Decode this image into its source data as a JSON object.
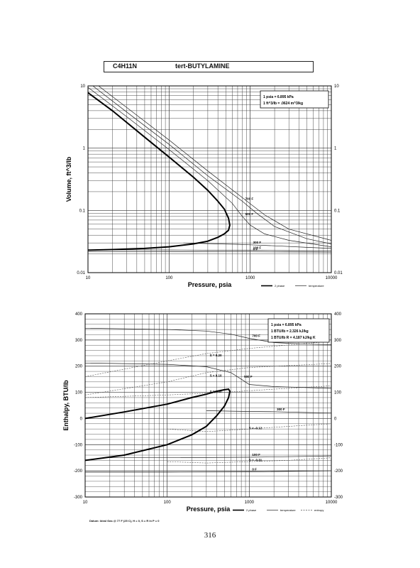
{
  "header": {
    "formula": "C4H11N",
    "name": "tert-BUTYLAMINE"
  },
  "page_number": "316",
  "footnote": "Datum: Ideal Gas @ 77 F (25 C), H = 0, S = R ln P = 0",
  "chart_data": [
    {
      "type": "line",
      "xlabel": "Pressure,  psia",
      "ylabel": "Volume, ft^3/lb",
      "xscale": "log",
      "yscale": "log",
      "xlim": [
        10,
        10000
      ],
      "ylim": [
        0.01,
        10
      ],
      "xticks": [
        "10",
        "100",
        "1000",
        "10000"
      ],
      "yticks_left": [
        "10",
        "1",
        "0.1",
        "0.01"
      ],
      "yticks_right": [
        "10",
        "1",
        "0.1",
        "0.01"
      ],
      "notes": [
        "1 psia = 6.895 kPa",
        "1 ft^3/lb = .0624 m^3/kg"
      ],
      "legend": {
        "placement": "bottom-right",
        "entries": [
          "2 phase",
          "temperature"
        ]
      },
      "dome": {
        "name": "2 phase",
        "x": [
          10,
          20,
          50,
          100,
          200,
          300,
          400,
          480,
          540,
          560,
          540,
          480,
          400,
          300,
          200,
          100,
          50,
          20,
          10
        ],
        "y": [
          7.8,
          4.0,
          1.5,
          0.72,
          0.34,
          0.21,
          0.14,
          0.105,
          0.075,
          0.058,
          0.048,
          0.042,
          0.037,
          0.032,
          0.029,
          0.026,
          0.0245,
          0.0235,
          0.023
        ]
      },
      "series": [
        {
          "name": "0 F",
          "label": "0 F",
          "x": [
            10,
            100,
            1000,
            3000,
            10000
          ],
          "y": [
            0.0218,
            0.0217,
            0.0216,
            0.0215,
            0.0213
          ]
        },
        {
          "name": "100 F",
          "label": "100 F",
          "x": [
            20,
            100,
            1000,
            3000,
            10000
          ],
          "y": [
            0.0232,
            0.0231,
            0.0228,
            0.0226,
            0.0222
          ]
        },
        {
          "name": "300 F",
          "label": "300 F",
          "x": [
            150,
            400,
            700,
            1000,
            2000,
            5000,
            10000
          ],
          "y": [
            0.03,
            0.029,
            0.0285,
            0.028,
            0.027,
            0.0255,
            0.0245
          ]
        },
        {
          "name": "500 F",
          "label": "500 F",
          "x": [
            10,
            30,
            100,
            300,
            600,
            800,
            1000,
            1500,
            3000,
            10000
          ],
          "y": [
            9.5,
            3.2,
            0.95,
            0.3,
            0.13,
            0.08,
            0.058,
            0.042,
            0.033,
            0.026
          ]
        },
        {
          "name": "700 F",
          "label": "700 F",
          "x": [
            10,
            30,
            100,
            300,
            800,
            1200,
            2000,
            5000,
            10000
          ],
          "y": [
            11.5,
            3.8,
            1.15,
            0.36,
            0.14,
            0.09,
            0.055,
            0.035,
            0.029
          ]
        },
        {
          "name": "temperature",
          "label": "",
          "x": [
            10,
            30,
            100,
            300,
            800,
            1500,
            3000,
            10000
          ],
          "y": [
            13.5,
            4.5,
            1.35,
            0.43,
            0.16,
            0.085,
            0.05,
            0.033
          ]
        }
      ]
    },
    {
      "type": "line",
      "xlabel": "Pressure,  psia",
      "ylabel": "Enthalpy, BTU/lb",
      "xscale": "log",
      "yscale": "linear",
      "xlim": [
        10,
        10000
      ],
      "ylim": [
        -300,
        400
      ],
      "xticks": [
        "10",
        "100",
        "1000",
        "10000"
      ],
      "yticks_left": [
        "400",
        "300",
        "200",
        "100",
        "0",
        "-100",
        "-200",
        "-300"
      ],
      "yticks_right": [
        "400",
        "300",
        "200",
        "100",
        "0",
        "-100",
        "-200",
        "-300"
      ],
      "notes": [
        "1 psia = 6.895 kPa",
        "1 BTU/lb = 2.326 kJ/kg",
        "1 BTU/lb R = 4.187 kJ/kg K"
      ],
      "legend": {
        "placement": "bottom-right",
        "entries": [
          "2 phase",
          "temperature",
          "entropy"
        ]
      },
      "dome": {
        "name": "2 phase",
        "x": [
          10,
          30,
          100,
          200,
          300,
          400,
          500,
          560,
          580,
          560,
          500,
          400,
          300,
          200,
          100,
          30,
          10
        ],
        "y": [
          0,
          25,
          55,
          80,
          93,
          104,
          110,
          112,
          104,
          80,
          48,
          10,
          -30,
          -62,
          -100,
          -140,
          -160
        ]
      },
      "series": [
        {
          "name": "700 F",
          "label": "700 F",
          "x": [
            10,
            100,
            300,
            600,
            1000,
            2000,
            5000,
            10000
          ],
          "y": [
            345,
            340,
            334,
            322,
            306,
            290,
            284,
            282
          ]
        },
        {
          "name": "500 F",
          "label": "500 F",
          "x": [
            10,
            100,
            300,
            600,
            800,
            1000,
            2000,
            5000,
            10000
          ],
          "y": [
            212,
            207,
            198,
            175,
            150,
            130,
            122,
            118,
            115
          ]
        },
        {
          "name": "300 F",
          "label": "300 F",
          "x": [
            300,
            600,
            1000,
            2000,
            5000,
            10000
          ],
          "y": [
            30,
            28,
            27,
            26,
            23,
            21
          ]
        },
        {
          "name": "100 F",
          "label": "100 F",
          "x": [
            20,
            100,
            1000,
            3000,
            10000
          ],
          "y": [
            -150,
            -150,
            -148,
            -146,
            -143
          ]
        },
        {
          "name": "0 F",
          "label": "0 F",
          "x": [
            10,
            100,
            1000,
            3000,
            10000
          ],
          "y": [
            -205,
            -205,
            -204,
            -202,
            -200
          ]
        },
        {
          "name": "S = 0.20",
          "label": "S = 0.20",
          "style": "entropy",
          "x": [
            10,
            100,
            300,
            1000,
            10000
          ],
          "y": [
            160,
            220,
            248,
            268,
            295
          ]
        },
        {
          "name": "S = 0.10",
          "label": "S = 0.10",
          "style": "entropy",
          "x": [
            10,
            100,
            300,
            1000,
            10000
          ],
          "y": [
            90,
            140,
            175,
            195,
            210
          ]
        },
        {
          "name": "S = 0.00",
          "label": "S = 0.00",
          "style": "entropy",
          "x": [
            10,
            100,
            500,
            2000,
            10000
          ],
          "y": [
            80,
            90,
            100,
            112,
            125
          ]
        },
        {
          "name": "S = -0.12",
          "label": "S = -0.12",
          "style": "entropy",
          "x": [
            100,
            300,
            1000,
            3000,
            10000
          ],
          "y": [
            -40,
            -50,
            -40,
            -30,
            -20
          ]
        },
        {
          "name": "S = -0.31",
          "label": "S = -0.31",
          "style": "entropy",
          "x": [
            100,
            300,
            1000,
            3000,
            10000
          ],
          "y": [
            -165,
            -170,
            -165,
            -160,
            -150
          ]
        }
      ]
    }
  ]
}
